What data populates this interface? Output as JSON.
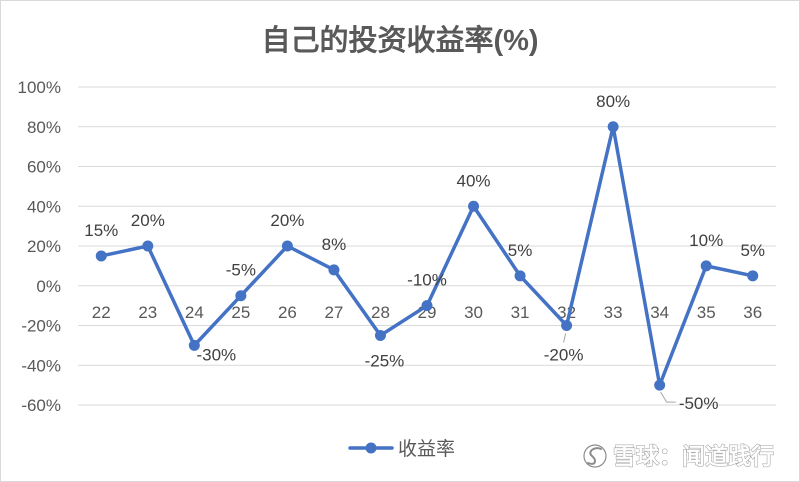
{
  "chart_data": {
    "type": "line",
    "title": "自己的投资收益率(%)",
    "categories": [
      "22",
      "23",
      "24",
      "25",
      "26",
      "27",
      "28",
      "29",
      "30",
      "31",
      "32",
      "33",
      "34",
      "35",
      "36"
    ],
    "series": [
      {
        "name": "收益率",
        "values": [
          15,
          20,
          -30,
          -5,
          20,
          8,
          -25,
          -10,
          40,
          5,
          -20,
          80,
          -50,
          10,
          5
        ],
        "labels": [
          "15%",
          "20%",
          "-30%",
          "-5%",
          "20%",
          "8%",
          "-25%",
          "-10%",
          "40%",
          "5%",
          "-20%",
          "80%",
          "-50%",
          "10%",
          "5%"
        ],
        "color": "#4472C4"
      }
    ],
    "ylim": [
      -60,
      100
    ],
    "y_ticks": [
      100,
      80,
      60,
      40,
      20,
      0,
      -20,
      -40,
      -60
    ],
    "y_tick_labels": [
      "100%",
      "80%",
      "60%",
      "40%",
      "20%",
      "0%",
      "-20%",
      "-40%",
      "-60%"
    ],
    "grid": true,
    "legend": "bottom",
    "colors": {
      "gridline": "#D9D9D9",
      "axis_text": "#595959",
      "label_text": "#404040"
    }
  },
  "watermark": {
    "text": "雪球：闻道践行",
    "icon": "xueqiu-logo-icon"
  }
}
